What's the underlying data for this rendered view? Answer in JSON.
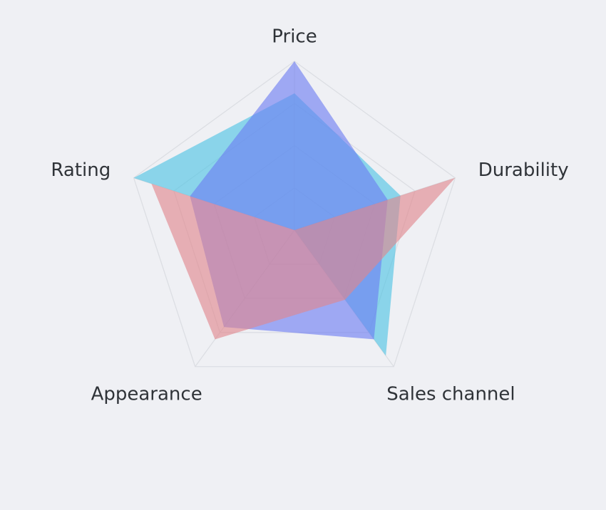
{
  "chart_data": {
    "type": "radar",
    "title": "",
    "axes": [
      "Price",
      "Durability",
      "Sales channel",
      "Appearance",
      "Rating"
    ],
    "range": [
      0,
      100
    ],
    "grid_levels": 4,
    "grid": true,
    "series": [
      {
        "values": [
          81,
          66,
          92,
          0,
          100
        ],
        "color": "#4cc4e4"
      },
      {
        "values": [
          100,
          58,
          80,
          71,
          65
        ],
        "color": "#6c7cf2"
      },
      {
        "values": [
          0,
          100,
          51,
          80,
          89
        ],
        "color": "#e0868c"
      }
    ]
  }
}
